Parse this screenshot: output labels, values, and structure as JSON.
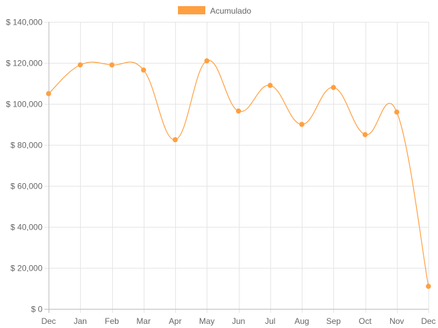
{
  "chart_data": {
    "type": "line",
    "categories": [
      "Dec",
      "Jan",
      "Feb",
      "Mar",
      "Apr",
      "May",
      "Jun",
      "Jul",
      "Aug",
      "Sep",
      "Oct",
      "Nov",
      "Dec"
    ],
    "series": [
      {
        "name": "Acumulado",
        "color": "#ff9f40",
        "values": [
          105000,
          119000,
          119000,
          116500,
          82500,
          121000,
          96500,
          109000,
          90000,
          108000,
          85000,
          96000,
          11000
        ]
      }
    ],
    "y_ticks": [
      "$ 0",
      "$ 20,000",
      "$ 40,000",
      "$ 60,000",
      "$ 80,000",
      "$ 100,000",
      "$ 120,000",
      "$ 140,000"
    ],
    "ylim": [
      0,
      140000
    ],
    "grid": true,
    "legend": "top-center",
    "title": "",
    "xlabel": "",
    "ylabel": ""
  }
}
